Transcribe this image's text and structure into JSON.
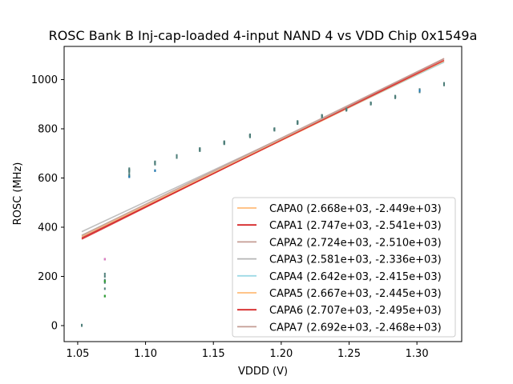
{
  "chart_data": {
    "type": "scatter",
    "title": "ROSC Bank B Inj-cap-loaded 4-input NAND 4 vs VDD Chip 0x1549a",
    "xlabel": "VDDD (V)",
    "ylabel": "ROSC (MHz)",
    "xlim": [
      1.04,
      1.333
    ],
    "ylim": [
      -65,
      1135
    ],
    "xticks": [
      1.05,
      1.1,
      1.15,
      1.2,
      1.25,
      1.3
    ],
    "xtick_labels": [
      "1.05",
      "1.10",
      "1.15",
      "1.20",
      "1.25",
      "1.30"
    ],
    "yticks": [
      0,
      200,
      400,
      600,
      800,
      1000
    ],
    "ytick_labels": [
      "0",
      "200",
      "400",
      "600",
      "800",
      "1000"
    ],
    "fit_x_range": [
      1.053,
      1.32
    ],
    "legend_position": "lower-right",
    "series": [
      {
        "name": "CAPA0",
        "label": "CAPA0 (2.668e+03, -2.449e+03)",
        "slope": 2668,
        "intercept": -2449,
        "color": "#ffbb78",
        "points": [
          [
            1.053,
            1
          ],
          [
            1.07,
            180
          ],
          [
            1.088,
            625
          ],
          [
            1.107,
            660
          ],
          [
            1.123,
            687
          ],
          [
            1.14,
            715
          ],
          [
            1.158,
            743
          ],
          [
            1.177,
            772
          ],
          [
            1.195,
            798
          ],
          [
            1.212,
            825
          ],
          [
            1.23,
            852
          ],
          [
            1.248,
            878
          ],
          [
            1.266,
            903
          ],
          [
            1.284,
            930
          ],
          [
            1.302,
            957
          ],
          [
            1.32,
            982
          ]
        ]
      },
      {
        "name": "CAPA1",
        "label": "CAPA1 (2.747e+03, -2.541e+03)",
        "slope": 2747,
        "intercept": -2541,
        "color": "#d62728",
        "points": [
          [
            1.053,
            0
          ],
          [
            1.07,
            210
          ],
          [
            1.088,
            632
          ],
          [
            1.107,
            664
          ],
          [
            1.123,
            690
          ],
          [
            1.14,
            718
          ],
          [
            1.158,
            745
          ],
          [
            1.177,
            774
          ],
          [
            1.195,
            799
          ],
          [
            1.212,
            828
          ],
          [
            1.23,
            853
          ],
          [
            1.248,
            879
          ],
          [
            1.266,
            904
          ],
          [
            1.284,
            931
          ],
          [
            1.302,
            958
          ],
          [
            1.32,
            983
          ]
        ]
      },
      {
        "name": "CAPA2",
        "label": "CAPA2 (2.724e+03, -2.510e+03)",
        "slope": 2724,
        "intercept": -2510,
        "color": "#c49c94",
        "points": [
          [
            1.053,
            2
          ],
          [
            1.07,
            150
          ],
          [
            1.088,
            610
          ],
          [
            1.107,
            658
          ],
          [
            1.123,
            684
          ],
          [
            1.14,
            712
          ],
          [
            1.158,
            740
          ],
          [
            1.177,
            768
          ],
          [
            1.195,
            795
          ],
          [
            1.212,
            822
          ],
          [
            1.23,
            849
          ],
          [
            1.248,
            876
          ],
          [
            1.266,
            901
          ],
          [
            1.284,
            927
          ],
          [
            1.302,
            954
          ],
          [
            1.32,
            979
          ]
        ]
      },
      {
        "name": "CAPA3",
        "label": "CAPA3 (2.581e+03, -2.336e+03)",
        "slope": 2581,
        "intercept": -2336,
        "color": "#b5b5b5",
        "points": [
          [
            1.053,
            1
          ],
          [
            1.07,
            200
          ],
          [
            1.088,
            638
          ],
          [
            1.107,
            666
          ],
          [
            1.123,
            692
          ],
          [
            1.14,
            720
          ],
          [
            1.158,
            748
          ],
          [
            1.177,
            776
          ],
          [
            1.195,
            801
          ],
          [
            1.212,
            830
          ],
          [
            1.23,
            855
          ],
          [
            1.248,
            881
          ],
          [
            1.266,
            906
          ],
          [
            1.284,
            933
          ],
          [
            1.302,
            960
          ],
          [
            1.32,
            985
          ]
        ]
      },
      {
        "name": "CAPA4",
        "label": "CAPA4 (2.642e+03, -2.415e+03)",
        "slope": 2642,
        "intercept": -2415,
        "color": "#9edae5",
        "points": [
          [
            1.053,
            0
          ],
          [
            1.07,
            185
          ],
          [
            1.088,
            605
          ],
          [
            1.107,
            630
          ],
          [
            1.123,
            686
          ],
          [
            1.14,
            714
          ],
          [
            1.158,
            742
          ],
          [
            1.177,
            770
          ],
          [
            1.195,
            797
          ],
          [
            1.212,
            824
          ],
          [
            1.23,
            851
          ],
          [
            1.248,
            877
          ],
          [
            1.266,
            902
          ],
          [
            1.284,
            929
          ],
          [
            1.302,
            956
          ],
          [
            1.32,
            981
          ]
        ]
      },
      {
        "name": "CAPA5",
        "label": "CAPA5 (2.667e+03, -2.445e+03)",
        "slope": 2667,
        "intercept": -2445,
        "color": "#ffbb78",
        "points": [
          [
            1.053,
            1
          ],
          [
            1.07,
            175
          ],
          [
            1.088,
            628
          ],
          [
            1.107,
            662
          ],
          [
            1.123,
            688
          ],
          [
            1.14,
            716
          ],
          [
            1.158,
            744
          ],
          [
            1.177,
            773
          ],
          [
            1.195,
            798
          ],
          [
            1.212,
            826
          ],
          [
            1.23,
            852
          ],
          [
            1.248,
            878
          ],
          [
            1.266,
            903
          ],
          [
            1.284,
            930
          ],
          [
            1.302,
            950
          ],
          [
            1.32,
            982
          ]
        ]
      },
      {
        "name": "CAPA6",
        "label": "CAPA6 (2.707e+03, -2.495e+03)",
        "slope": 2707,
        "intercept": -2495,
        "color": "#d62728",
        "points": [
          [
            1.053,
            0
          ],
          [
            1.07,
            270
          ],
          [
            1.088,
            634
          ],
          [
            1.107,
            665
          ],
          [
            1.123,
            691
          ],
          [
            1.14,
            719
          ],
          [
            1.158,
            746
          ],
          [
            1.177,
            775
          ],
          [
            1.195,
            800
          ],
          [
            1.212,
            829
          ],
          [
            1.23,
            854
          ],
          [
            1.248,
            880
          ],
          [
            1.266,
            905
          ],
          [
            1.284,
            932
          ],
          [
            1.302,
            959
          ],
          [
            1.32,
            984
          ]
        ]
      },
      {
        "name": "CAPA7",
        "label": "CAPA7 (2.692e+03, -2.468e+03)",
        "slope": 2692,
        "intercept": -2468,
        "color": "#c49c94",
        "points": [
          [
            1.053,
            2
          ],
          [
            1.07,
            120
          ],
          [
            1.088,
            615
          ],
          [
            1.107,
            656
          ],
          [
            1.123,
            683
          ],
          [
            1.14,
            711
          ],
          [
            1.158,
            739
          ],
          [
            1.177,
            767
          ],
          [
            1.195,
            794
          ],
          [
            1.212,
            821
          ],
          [
            1.23,
            848
          ],
          [
            1.248,
            875
          ],
          [
            1.266,
            900
          ],
          [
            1.284,
            926
          ],
          [
            1.302,
            953
          ],
          [
            1.32,
            978
          ]
        ]
      }
    ],
    "extra_points": [
      {
        "color": "#2ca02c",
        "points": [
          [
            1.07,
            120
          ],
          [
            1.07,
            180
          ]
        ]
      },
      {
        "color": "#1f77b4",
        "points": [
          [
            1.107,
            630
          ],
          [
            1.088,
            605
          ],
          [
            1.302,
            955
          ]
        ]
      },
      {
        "color": "#e377c2",
        "points": [
          [
            1.07,
            270
          ]
        ]
      }
    ]
  }
}
